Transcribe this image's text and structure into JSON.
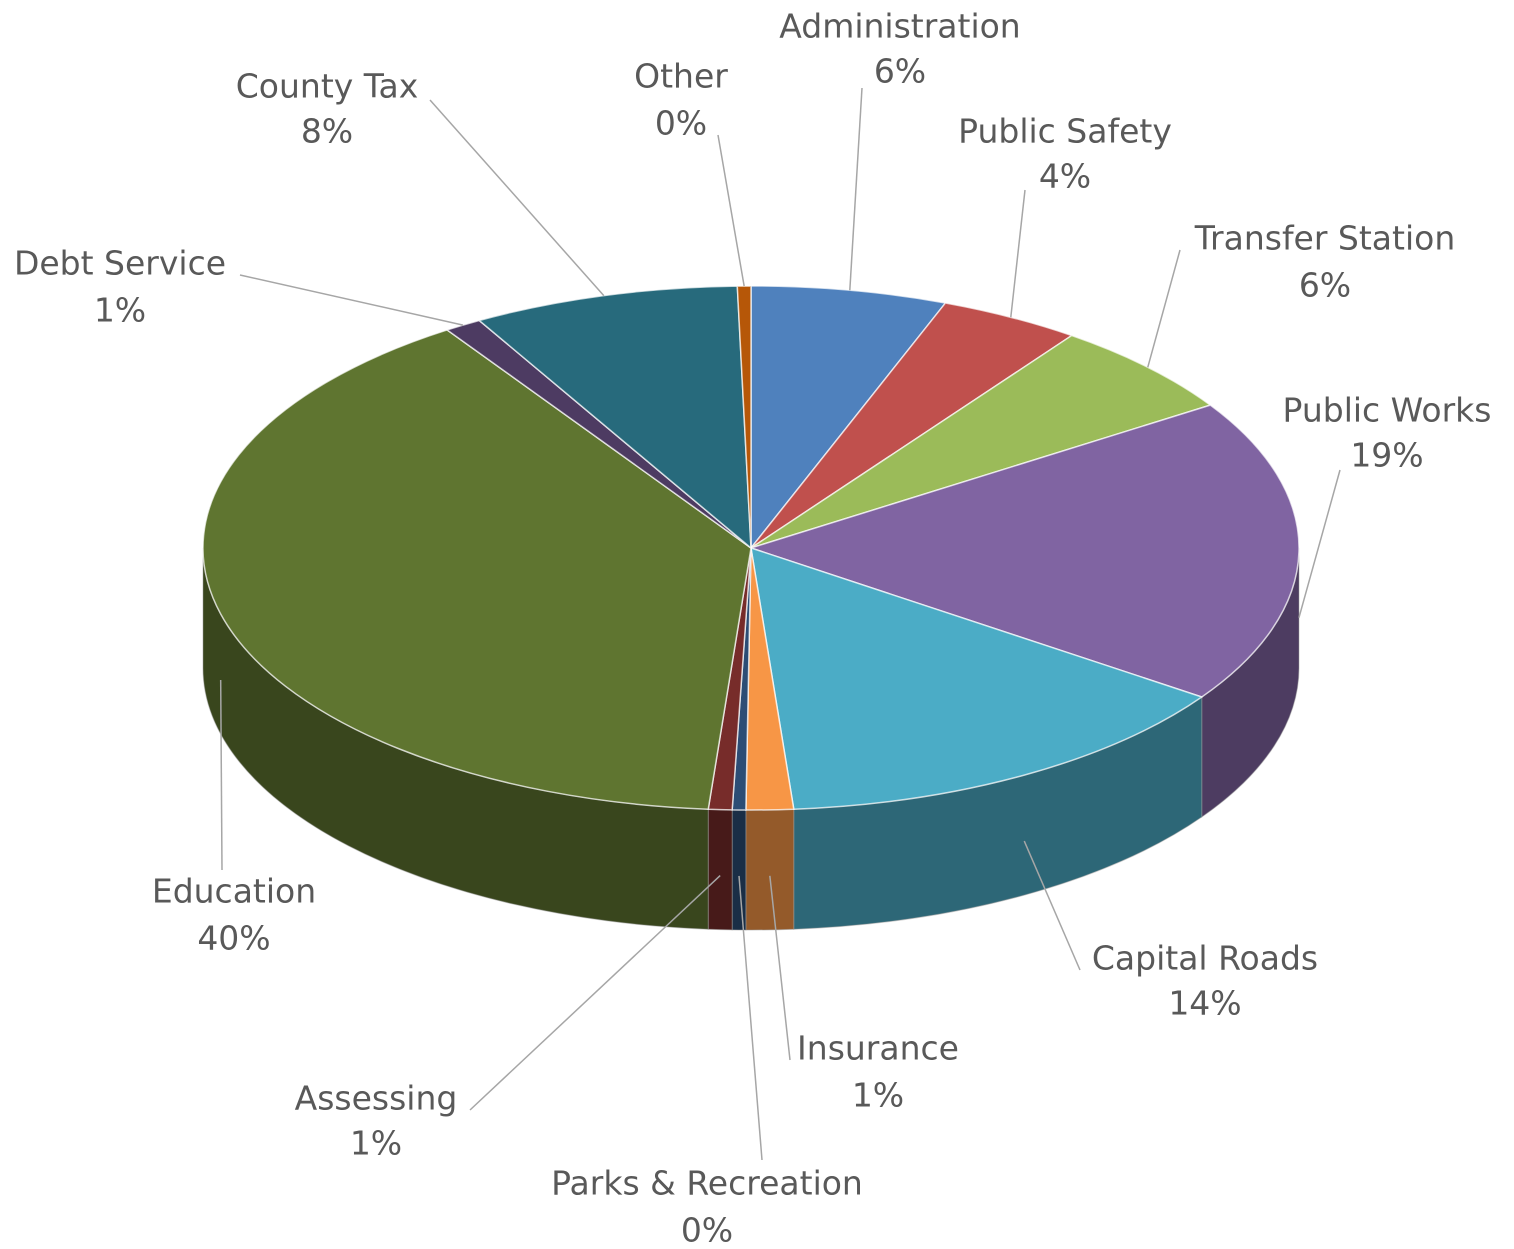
{
  "chart_data": {
    "type": "pie3d",
    "categories": [
      "Administration",
      "Public Safety",
      "Transfer Station",
      "Public Works",
      "Capital Roads",
      "Insurance",
      "Parks & Recreation",
      "Assessing",
      "Education",
      "Debt Service",
      "County Tax",
      "Other"
    ],
    "values": [
      5.8,
      4.2,
      5.9,
      18.9,
      14.2,
      1.4,
      0.4,
      0.7,
      39.6,
      1.1,
      7.9,
      0.4
    ],
    "value_labels": [
      "6%",
      "4%",
      "6%",
      "19%",
      "14%",
      "1%",
      "0%",
      "1%",
      "40%",
      "1%",
      "8%",
      "0%"
    ],
    "colors": [
      "#4f81bd",
      "#c0504d",
      "#9bbb59",
      "#8064a2",
      "#4bacc6",
      "#f79646",
      "#2c4d75",
      "#772c2a",
      "#5f7530",
      "#4d3b62",
      "#276a7c",
      "#b65708"
    ]
  }
}
